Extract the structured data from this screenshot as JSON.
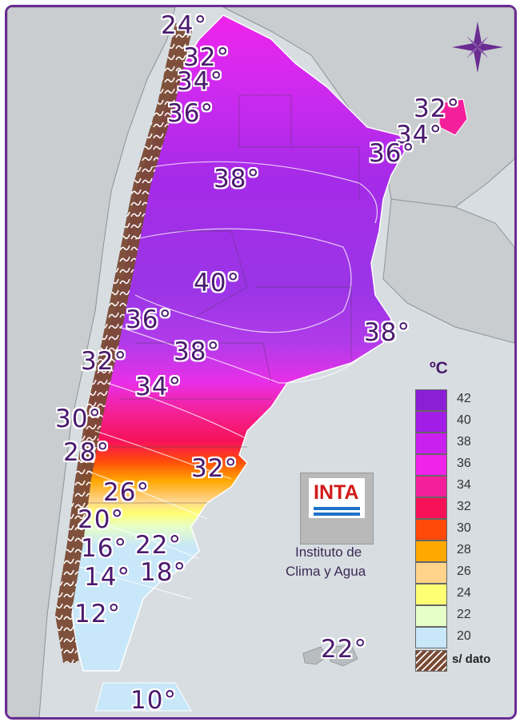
{
  "colors": {
    "frame": "#6a2c91",
    "sea": "#d7dde1",
    "neighbor_land": "#c9cdd0",
    "label_text": "#4a1a6e",
    "no_data": "#7a4a33"
  },
  "legend": {
    "unit": "ºC",
    "items": [
      {
        "label": "42",
        "color": "#8a1fd6"
      },
      {
        "label": "40",
        "color": "#a21ee6"
      },
      {
        "label": "38",
        "color": "#c920ef"
      },
      {
        "label": "36",
        "color": "#ef23e9"
      },
      {
        "label": "34",
        "color": "#f4209b"
      },
      {
        "label": "32",
        "color": "#f71258"
      },
      {
        "label": "30",
        "color": "#ff4a0a"
      },
      {
        "label": "28",
        "color": "#ffa800"
      },
      {
        "label": "26",
        "color": "#ffd48a"
      },
      {
        "label": "24",
        "color": "#ffff73"
      },
      {
        "label": "22",
        "color": "#e6ffc8"
      },
      {
        "label": "20",
        "color": "#c8e7f8"
      }
    ],
    "no_data_label": "s/ dato"
  },
  "map_labels": [
    "24°",
    "32°",
    "34°",
    "36°",
    "32°",
    "34°",
    "36°",
    "38°",
    "40°",
    "36°",
    "38°",
    "38°",
    "32°",
    "34°",
    "30°",
    "28°",
    "32°",
    "26°",
    "20°",
    "16°",
    "22°",
    "14°",
    "18°",
    "12°",
    "22°",
    "10°"
  ],
  "institution": {
    "logo": "INTA",
    "line1": "Instituto de",
    "line2": "Clima y Agua"
  }
}
